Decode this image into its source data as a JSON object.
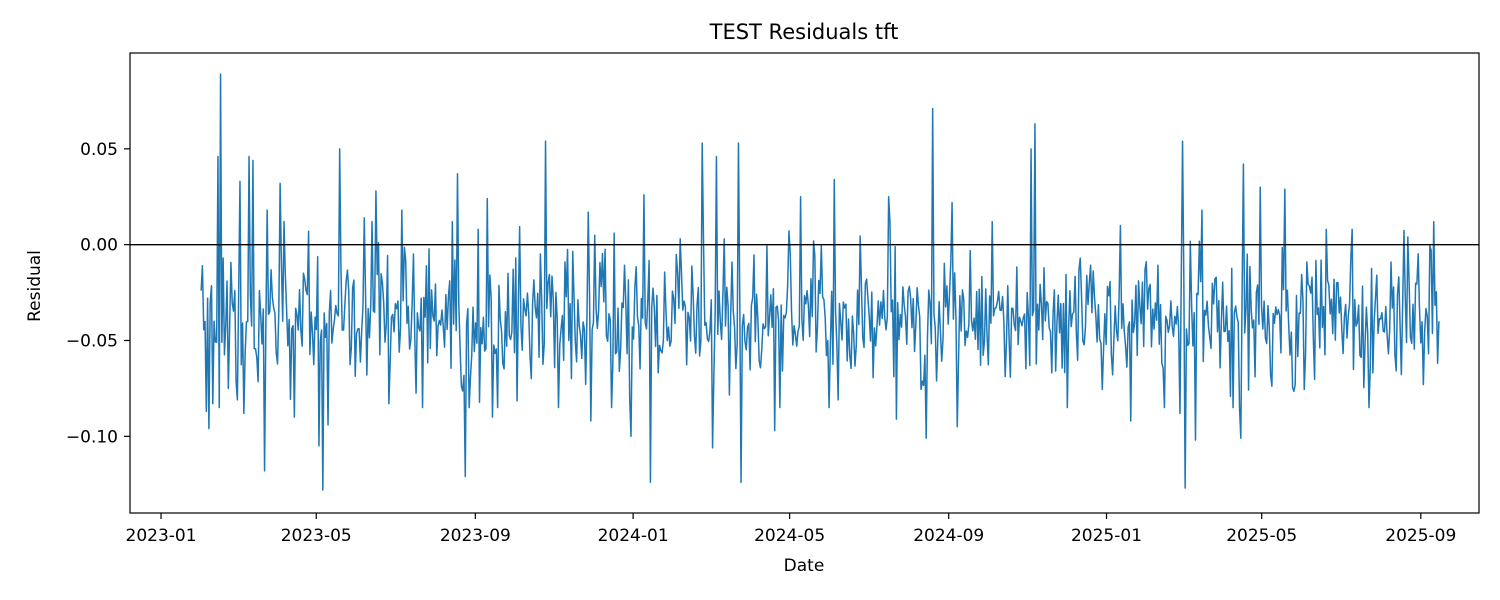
{
  "chart_data": {
    "type": "line",
    "title": "TEST Residuals tft",
    "xlabel": "Date",
    "ylabel": "Residual",
    "x_ticks": [
      "2023-01",
      "2023-05",
      "2023-09",
      "2024-01",
      "2024-05",
      "2024-09",
      "2025-01",
      "2025-05",
      "2025-09"
    ],
    "y_ticks": [
      0.05,
      0.0,
      -0.05,
      -0.1
    ],
    "y_tick_labels": [
      "0.05",
      "0.00",
      "−0.05",
      "−0.10"
    ],
    "xlim": [
      "2022-12-08",
      "2025-10-16"
    ],
    "ylim": [
      -0.14,
      0.1
    ],
    "reference_line": 0.0,
    "grid": false,
    "series": [
      {
        "color": "#1f77b4",
        "frequency": "daily",
        "start_date": "2023-02-01",
        "end_date": "2025-09-15",
        "baseline": -0.038,
        "point_count": 957,
        "notable_points": [
          {
            "x": "2023-02-01",
            "y": -0.024
          },
          {
            "x": "2023-02-02",
            "y": -0.011
          },
          {
            "x": "2023-02-05",
            "y": -0.087
          },
          {
            "x": "2023-02-07",
            "y": -0.096
          },
          {
            "x": "2023-02-10",
            "y": -0.083
          },
          {
            "x": "2023-02-14",
            "y": 0.046
          },
          {
            "x": "2023-02-16",
            "y": 0.089
          },
          {
            "x": "2023-02-22",
            "y": -0.075
          },
          {
            "x": "2023-03-01",
            "y": -0.081
          },
          {
            "x": "2023-03-03",
            "y": 0.033
          },
          {
            "x": "2023-03-06",
            "y": -0.088
          },
          {
            "x": "2023-03-10",
            "y": 0.046
          },
          {
            "x": "2023-03-13",
            "y": 0.044
          },
          {
            "x": "2023-03-16",
            "y": -0.059
          },
          {
            "x": "2023-03-22",
            "y": -0.118
          },
          {
            "x": "2023-03-24",
            "y": 0.018
          },
          {
            "x": "2023-04-03",
            "y": 0.032
          },
          {
            "x": "2023-04-06",
            "y": 0.012
          },
          {
            "x": "2023-04-14",
            "y": -0.09
          },
          {
            "x": "2023-04-25",
            "y": 0.007
          },
          {
            "x": "2023-05-03",
            "y": -0.105
          },
          {
            "x": "2023-05-06",
            "y": -0.128
          },
          {
            "x": "2023-05-10",
            "y": -0.094
          },
          {
            "x": "2023-05-19",
            "y": 0.05
          },
          {
            "x": "2023-06-07",
            "y": 0.014
          },
          {
            "x": "2023-06-16",
            "y": 0.028
          },
          {
            "x": "2023-06-26",
            "y": -0.083
          },
          {
            "x": "2023-07-06",
            "y": 0.018
          },
          {
            "x": "2023-08-18",
            "y": 0.037
          },
          {
            "x": "2023-08-24",
            "y": -0.121
          },
          {
            "x": "2023-09-10",
            "y": 0.024
          },
          {
            "x": "2023-09-14",
            "y": -0.09
          },
          {
            "x": "2023-10-25",
            "y": 0.054
          },
          {
            "x": "2023-11-27",
            "y": 0.017
          },
          {
            "x": "2023-11-29",
            "y": -0.092
          },
          {
            "x": "2023-12-17",
            "y": 0.006
          },
          {
            "x": "2023-12-30",
            "y": -0.1
          },
          {
            "x": "2024-01-09",
            "y": 0.026
          },
          {
            "x": "2024-01-14",
            "y": -0.124
          },
          {
            "x": "2024-02-23",
            "y": 0.053
          },
          {
            "x": "2024-03-02",
            "y": -0.106
          },
          {
            "x": "2024-03-05",
            "y": 0.046
          },
          {
            "x": "2024-03-22",
            "y": 0.053
          },
          {
            "x": "2024-03-24",
            "y": -0.124
          },
          {
            "x": "2024-04-19",
            "y": -0.097
          },
          {
            "x": "2024-05-09",
            "y": 0.025
          },
          {
            "x": "2024-06-05",
            "y": 0.034
          },
          {
            "x": "2024-06-08",
            "y": -0.081
          },
          {
            "x": "2024-07-17",
            "y": 0.025
          },
          {
            "x": "2024-07-23",
            "y": -0.091
          },
          {
            "x": "2024-08-15",
            "y": -0.101
          },
          {
            "x": "2024-08-20",
            "y": 0.071
          },
          {
            "x": "2024-09-04",
            "y": 0.022
          },
          {
            "x": "2024-09-08",
            "y": -0.095
          },
          {
            "x": "2024-10-05",
            "y": 0.012
          },
          {
            "x": "2024-11-04",
            "y": 0.05
          },
          {
            "x": "2024-11-07",
            "y": 0.063
          },
          {
            "x": "2024-12-02",
            "y": -0.085
          },
          {
            "x": "2025-01-12",
            "y": 0.01
          },
          {
            "x": "2025-01-20",
            "y": -0.092
          },
          {
            "x": "2025-02-27",
            "y": -0.088
          },
          {
            "x": "2025-03-01",
            "y": 0.054
          },
          {
            "x": "2025-03-03",
            "y": -0.127
          },
          {
            "x": "2025-03-11",
            "y": -0.102
          },
          {
            "x": "2025-03-16",
            "y": 0.018
          },
          {
            "x": "2025-04-15",
            "y": -0.101
          },
          {
            "x": "2025-04-17",
            "y": 0.042
          },
          {
            "x": "2025-04-30",
            "y": 0.03
          },
          {
            "x": "2025-05-19",
            "y": 0.029
          },
          {
            "x": "2025-05-27",
            "y": -0.073
          },
          {
            "x": "2025-06-20",
            "y": 0.008
          },
          {
            "x": "2025-07-10",
            "y": 0.008
          },
          {
            "x": "2025-08-22",
            "y": 0.004
          },
          {
            "x": "2025-09-03",
            "y": -0.073
          },
          {
            "x": "2025-09-15",
            "y": -0.04
          }
        ]
      }
    ]
  }
}
